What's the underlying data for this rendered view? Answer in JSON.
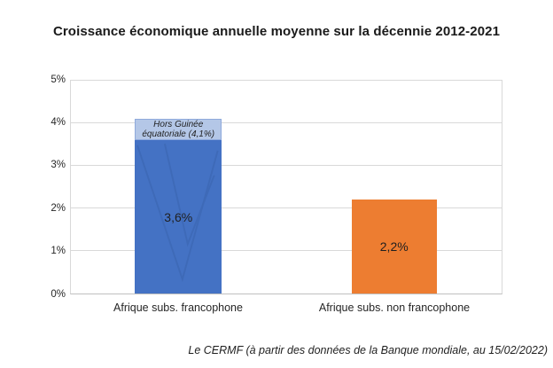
{
  "chart_data": {
    "type": "bar",
    "title": "Croissance économique annuelle moyenne sur la décennie 2012-2021",
    "categories": [
      "Afrique subs. francophone",
      "Afrique subs. non francophone"
    ],
    "values": [
      3.6,
      2.2
    ],
    "value_labels": [
      "3,6%",
      "2,2%"
    ],
    "bar_colors": [
      "#4472c4",
      "#ed7d31"
    ],
    "annotation": {
      "category_index": 0,
      "value": 4.1,
      "label_lines": [
        "Hors Guinée",
        "équatoriale (4,1%)"
      ],
      "fill": "#b4c7e7",
      "border": "#8faadc"
    },
    "ylim": [
      0,
      5
    ],
    "ytick_values": [
      0,
      1,
      2,
      3,
      4,
      5
    ],
    "ytick_labels": [
      "0%",
      "1%",
      "2%",
      "3%",
      "4%",
      "5%"
    ],
    "grid": true,
    "legend": "none",
    "source_note": "Le CERMF (à partir des données de la Banque mondiale, au 15/02/2022)"
  },
  "colors": {
    "gridline": "#d9d9d9",
    "axis_line": "#bfbfbf",
    "text": "#262626"
  }
}
